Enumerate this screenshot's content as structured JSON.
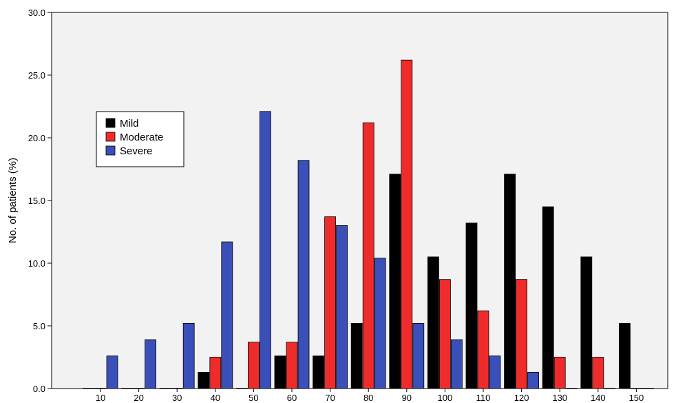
{
  "chart_data": {
    "type": "bar",
    "title": "",
    "xlabel": "",
    "ylabel": "No. of patients (%)",
    "ylim": [
      0,
      30
    ],
    "yticks": [
      "0.0",
      "5.0",
      "10.0",
      "15.0",
      "20.0",
      "25.0",
      "30.0"
    ],
    "categories": [
      "10",
      "20",
      "30",
      "40",
      "50",
      "60",
      "70",
      "80",
      "90",
      "100",
      "110",
      "120",
      "130",
      "140",
      "150"
    ],
    "series": [
      {
        "name": "Mild",
        "color": "#000000",
        "values": [
          0,
          0,
          0,
          1.3,
          0,
          2.6,
          2.6,
          5.2,
          17.1,
          10.5,
          13.2,
          17.1,
          14.5,
          10.5,
          5.2
        ]
      },
      {
        "name": "Moderate",
        "color": "#ee2c2c",
        "values": [
          0,
          0,
          0,
          2.5,
          3.7,
          3.7,
          13.7,
          21.2,
          26.2,
          8.7,
          6.2,
          8.7,
          2.5,
          2.5,
          0
        ]
      },
      {
        "name": "Severe",
        "color": "#3a4fb8",
        "values": [
          2.6,
          3.9,
          5.2,
          11.7,
          22.1,
          18.2,
          13.0,
          10.4,
          5.2,
          3.9,
          2.6,
          1.3,
          0,
          0,
          0
        ]
      }
    ],
    "grid": false,
    "legend_position": "upper-left",
    "background_color": "#f2f2f2"
  }
}
